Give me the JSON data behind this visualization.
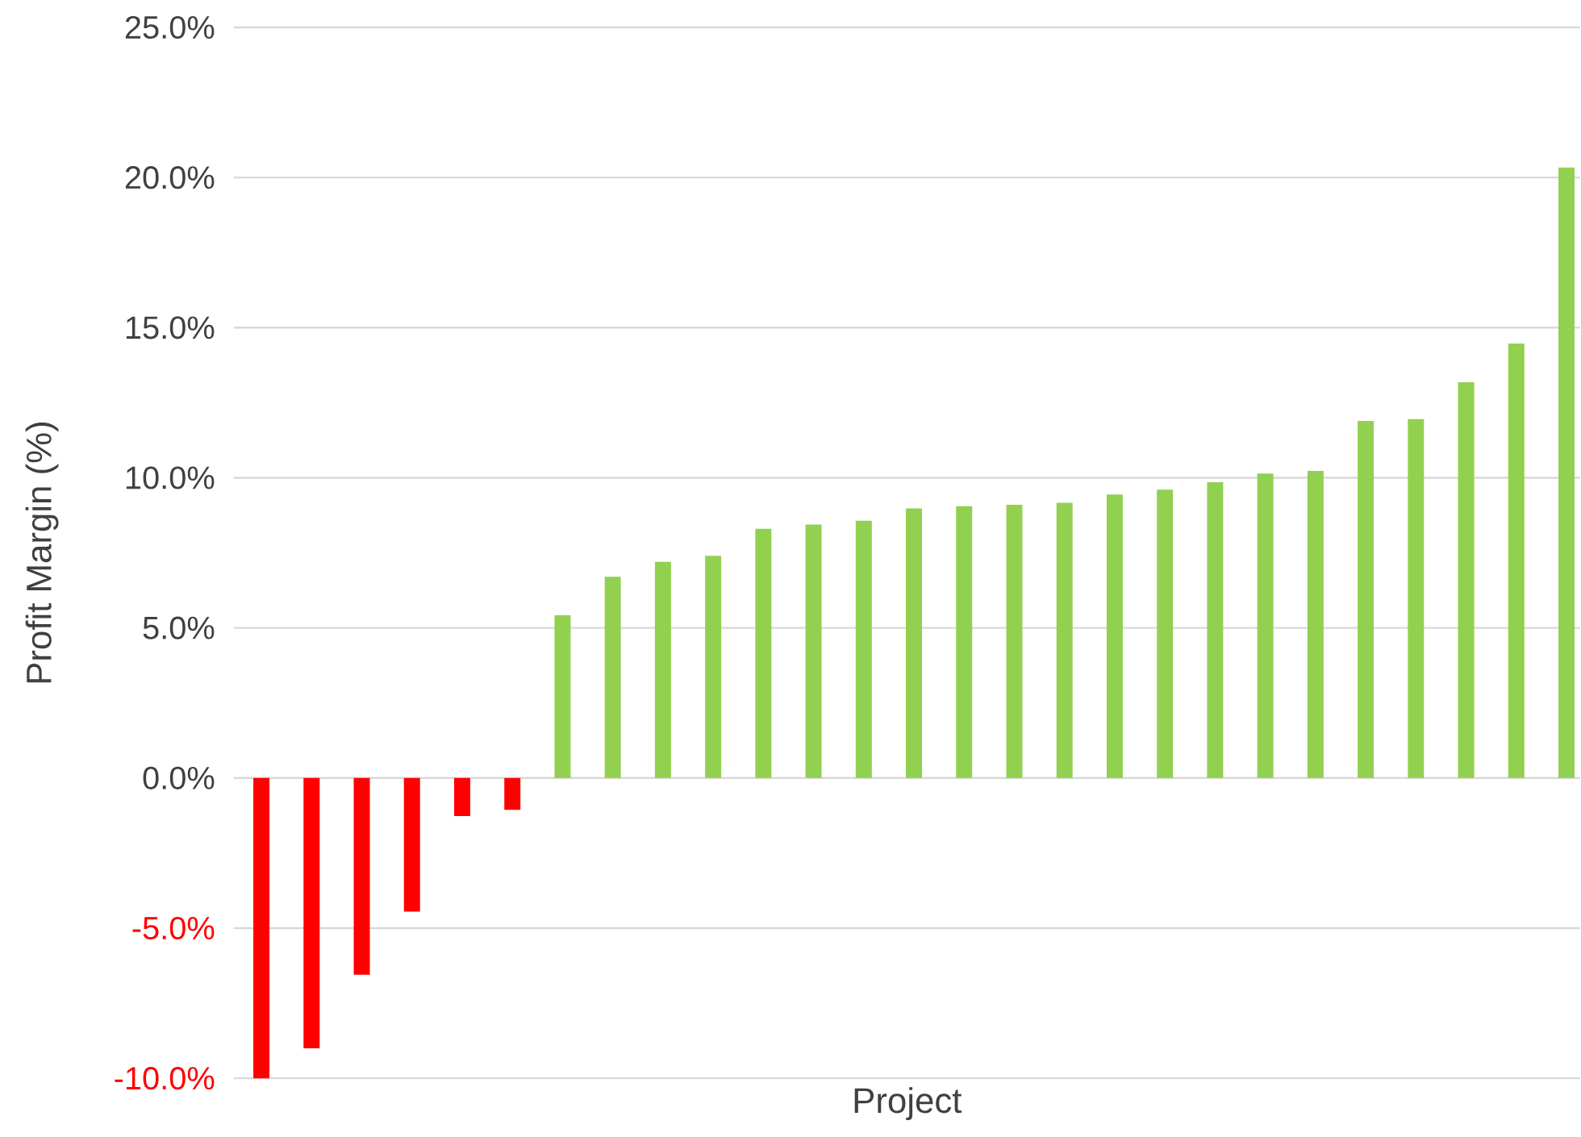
{
  "chart_data": {
    "type": "bar",
    "xlabel": "Project",
    "ylabel": "Profit Margin (%)",
    "categories": [
      null,
      null,
      null,
      null,
      null,
      null,
      null,
      null,
      null,
      null,
      null,
      null,
      null,
      null,
      null,
      null,
      null,
      null,
      null,
      null,
      null,
      null,
      null,
      null,
      null,
      null,
      null
    ],
    "values": [
      -10.0,
      -9.0,
      -6.55,
      -4.45,
      -1.27,
      -1.06,
      5.42,
      6.7,
      7.2,
      7.4,
      8.3,
      8.44,
      8.57,
      8.98,
      9.05,
      9.1,
      9.17,
      9.44,
      9.6,
      9.85,
      10.14,
      10.23,
      11.89,
      11.95,
      13.18,
      14.47,
      20.33
    ],
    "colors": [
      "#ff0000",
      "#ff0000",
      "#ff0000",
      "#ff0000",
      "#ff0000",
      "#ff0000",
      "#92d050",
      "#92d050",
      "#92d050",
      "#92d050",
      "#92d050",
      "#92d050",
      "#92d050",
      "#92d050",
      "#92d050",
      "#92d050",
      "#92d050",
      "#92d050",
      "#92d050",
      "#92d050",
      "#92d050",
      "#92d050",
      "#92d050",
      "#92d050",
      "#92d050",
      "#92d050",
      "#92d050"
    ],
    "ylim": [
      -10,
      25
    ],
    "yticks": [
      {
        "value": -10,
        "label": "-10.0%"
      },
      {
        "value": -5,
        "label": "-5.0%"
      },
      {
        "value": 0,
        "label": "0.0%"
      },
      {
        "value": 5,
        "label": "5.0%"
      },
      {
        "value": 10,
        "label": "10.0%"
      },
      {
        "value": 15,
        "label": "15.0%"
      },
      {
        "value": 20,
        "label": "20.0%"
      },
      {
        "value": 25,
        "label": "25.0%"
      }
    ],
    "grid": "y"
  }
}
